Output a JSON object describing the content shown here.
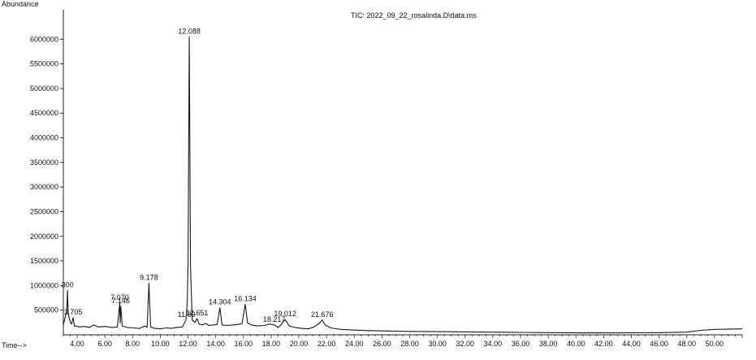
{
  "chart_data": {
    "type": "line",
    "title": "TIC: 2022_09_22_rosalinda.D\\data.ms",
    "ylabel": "Abundance",
    "xlabel": "Time-->",
    "xlim": [
      3.0,
      52.0
    ],
    "ylim": [
      0,
      6500000
    ],
    "xticks": [
      "4.00",
      "6.00",
      "8.00",
      "10.00",
      "12.00",
      "14.00",
      "16.00",
      "18.00",
      "20.00",
      "22.00",
      "24.00",
      "26.00",
      "28.00",
      "30.00",
      "32.00",
      "34.00",
      "36.00",
      "38.00",
      "40.00",
      "42.00",
      "44.00",
      "46.00",
      "48.00",
      "50.00"
    ],
    "yticks": [
      "500000",
      "1000000",
      "1500000",
      "2000000",
      "2500000",
      "3000000",
      "3500000",
      "4000000",
      "4500000",
      "5000000",
      "5500000",
      "6000000"
    ],
    "peaks": [
      {
        "label": "300",
        "x": 3.3,
        "y": 900000
      },
      {
        "label": "3.705",
        "x": 3.71,
        "y": 350000
      },
      {
        "label": "7.070",
        "x": 7.07,
        "y": 640000
      },
      {
        "label": "7.146",
        "x": 7.15,
        "y": 580000
      },
      {
        "label": "9.178",
        "x": 9.18,
        "y": 1050000
      },
      {
        "label": "12.088",
        "x": 12.09,
        "y": 6050000
      },
      {
        "label": "11.89",
        "x": 11.89,
        "y": 300000
      },
      {
        "label": "12.651",
        "x": 12.65,
        "y": 330000
      },
      {
        "label": "14.304",
        "x": 14.3,
        "y": 550000
      },
      {
        "label": "16.134",
        "x": 16.13,
        "y": 620000
      },
      {
        "label": "18.217",
        "x": 18.22,
        "y": 200000
      },
      {
        "label": "19.012",
        "x": 19.01,
        "y": 310000
      },
      {
        "label": "21.676",
        "x": 21.68,
        "y": 300000
      }
    ],
    "series": [
      {
        "x": [
          3.0,
          3.25,
          3.3,
          3.35,
          3.5,
          3.6,
          3.71,
          3.8,
          4.2,
          4.5,
          4.9,
          5.2,
          5.5,
          6.0,
          6.5,
          6.9,
          7.07,
          7.1,
          7.15,
          7.25,
          7.6,
          8.0,
          8.5,
          8.9,
          9.05,
          9.18,
          9.3,
          9.6,
          10.0,
          10.4,
          10.8,
          11.2,
          11.6,
          11.85,
          11.95,
          12.0,
          12.09,
          12.18,
          12.3,
          12.5,
          12.65,
          12.8,
          13.0,
          13.3,
          13.5,
          13.8,
          14.1,
          14.3,
          14.45,
          14.8,
          15.2,
          15.6,
          15.9,
          16.13,
          16.3,
          16.6,
          17.0,
          17.5,
          17.9,
          18.22,
          18.5,
          18.7,
          19.01,
          19.3,
          19.7,
          20.2,
          20.7,
          21.1,
          21.5,
          21.68,
          21.9,
          22.3,
          23.0,
          24.0,
          25.0,
          26.0,
          28.0,
          30.0,
          32.0,
          34.0,
          36.0,
          38.0,
          40.0,
          42.0,
          44.0,
          46.0,
          48.0,
          49.0,
          50.0,
          52.0
        ],
        "y": [
          200000,
          500000,
          900000,
          420000,
          260000,
          220000,
          350000,
          180000,
          160000,
          170000,
          150000,
          200000,
          160000,
          170000,
          150000,
          160000,
          640000,
          240000,
          580000,
          180000,
          150000,
          140000,
          130000,
          180000,
          150000,
          1050000,
          160000,
          130000,
          120000,
          140000,
          130000,
          150000,
          160000,
          300000,
          700000,
          1500000,
          6050000,
          1400000,
          300000,
          250000,
          330000,
          220000,
          200000,
          230000,
          190000,
          200000,
          210000,
          550000,
          200000,
          190000,
          200000,
          210000,
          230000,
          620000,
          240000,
          200000,
          180000,
          190000,
          220000,
          200000,
          150000,
          200000,
          310000,
          180000,
          150000,
          130000,
          120000,
          160000,
          240000,
          300000,
          200000,
          140000,
          110000,
          95000,
          85000,
          80000,
          70000,
          65000,
          60000,
          55000,
          50000,
          45000,
          40000,
          40000,
          42000,
          45000,
          55000,
          90000,
          110000,
          120000
        ]
      }
    ],
    "grid": false,
    "legend": "none"
  },
  "colors": {
    "line": "#1a1a1a",
    "axis": "#222222"
  }
}
